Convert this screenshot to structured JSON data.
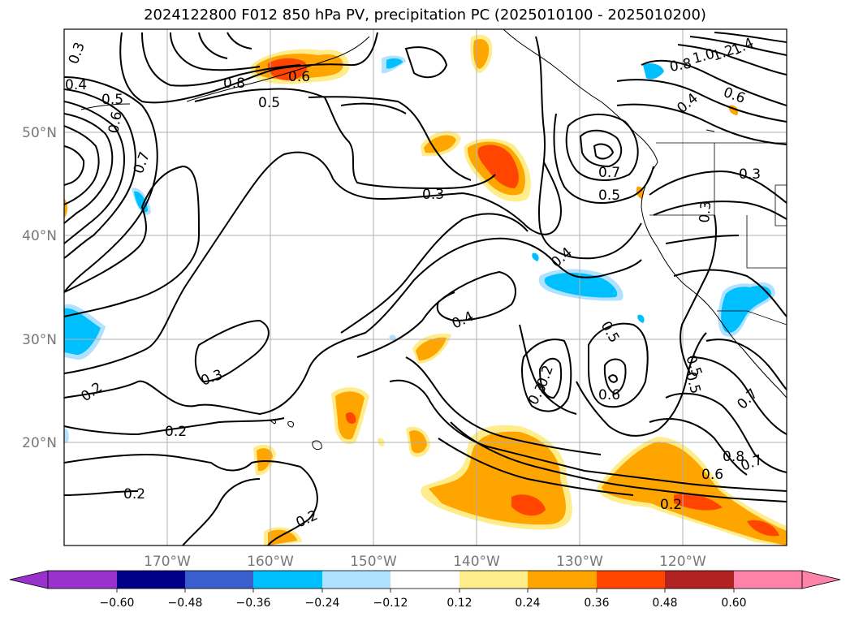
{
  "chart_data": {
    "type": "heatmap",
    "title": "2024122800 F012 850 hPa PV, precipitation PC (2025010100 - 2025010200)",
    "xlabel": "",
    "ylabel": "",
    "lon_range": [
      -180,
      -110
    ],
    "lat_range": [
      10,
      60
    ],
    "x_ticks": [
      "170°W",
      "160°W",
      "150°W",
      "140°W",
      "130°W",
      "120°W"
    ],
    "x_tick_values": [
      -170,
      -160,
      -150,
      -140,
      -130,
      -120
    ],
    "y_ticks": [
      "50°N",
      "40°N",
      "30°N",
      "20°N"
    ],
    "y_tick_values": [
      50,
      40,
      30,
      20
    ],
    "grid": true,
    "colorbar": {
      "orientation": "horizontal",
      "extend": "both",
      "ticks": [
        "−0.60",
        "−0.48",
        "−0.36",
        "−0.24",
        "−0.12",
        "0.12",
        "0.24",
        "0.36",
        "0.48",
        "0.60"
      ],
      "levels": [
        -0.6,
        -0.48,
        -0.36,
        -0.24,
        -0.12,
        0.12,
        0.24,
        0.36,
        0.48,
        0.6
      ],
      "colors": [
        "#9932CC",
        "#00008B",
        "#3A5FCD",
        "#00BFFF",
        "#B0E2FF",
        "#FFFFFF",
        "#FFEC8B",
        "#FFA500",
        "#FF4500",
        "#B22222",
        "#FF82AB"
      ]
    },
    "precip_anomaly_regions": [
      {
        "lon": -157.5,
        "lat": 56.5,
        "value": 0.4
      },
      {
        "lon": -138.5,
        "lat": 47,
        "value": 0.4
      },
      {
        "lon": -130.5,
        "lat": 14.5,
        "value": 0.3
      },
      {
        "lon": -118,
        "lat": 16,
        "value": 0.3
      },
      {
        "lon": -152.5,
        "lat": 23,
        "value": 0.3
      },
      {
        "lon": -144.5,
        "lat": 29,
        "value": 0.25
      },
      {
        "lon": -147,
        "lat": 57,
        "value": 0.25
      },
      {
        "lon": -133,
        "lat": 34.5,
        "value": -0.3
      },
      {
        "lon": -115,
        "lat": 32,
        "value": -0.3
      },
      {
        "lon": -178,
        "lat": 31,
        "value": -0.3
      },
      {
        "lon": -174,
        "lat": 43,
        "value": -0.3
      }
    ],
    "contour_labels": [
      "0.3",
      "0.4",
      "0.5",
      "0.6",
      "0.7",
      "0.5",
      "0.6",
      "0.5",
      "0.3",
      "0.7",
      "0.5",
      "0.3",
      "0.3",
      "0.4",
      "0.4",
      "0.5",
      "0.3",
      "0.2",
      "0.2",
      "0.2",
      "0.2",
      "0.3",
      "0.2",
      "0.6",
      "0.5",
      "0.7",
      "0.8",
      "0.6",
      "0.7",
      "0.8",
      "0.2",
      "1.0",
      "1.2",
      "1.4",
      "0.8",
      "0.6",
      "0.4"
    ]
  }
}
